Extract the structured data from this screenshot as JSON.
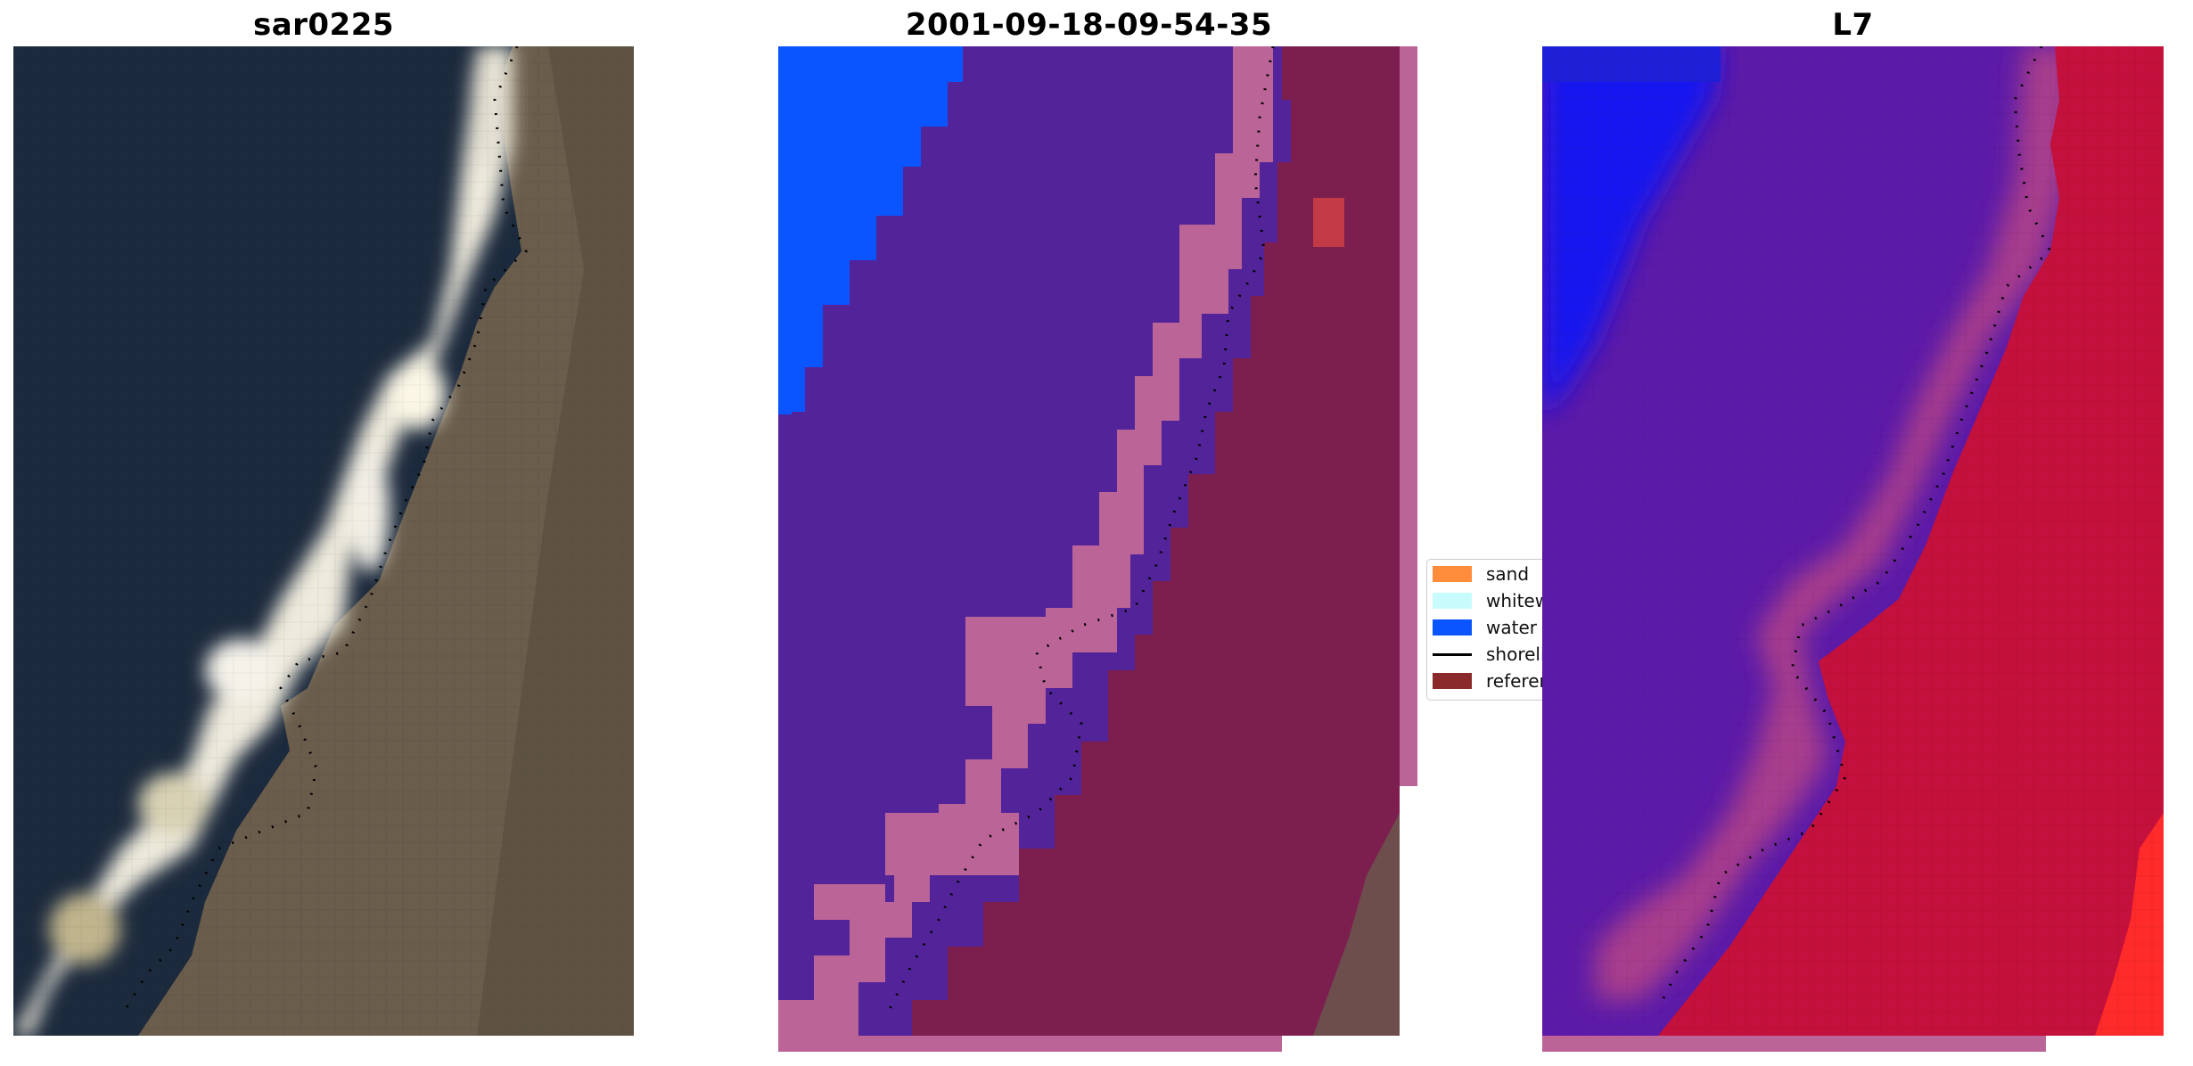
{
  "panels": [
    {
      "title": "sar0225",
      "kind": "rgb"
    },
    {
      "title": "2001-09-18-09-54-35",
      "kind": "classified"
    },
    {
      "title": "L7",
      "kind": "probability"
    }
  ],
  "legend": {
    "items": [
      {
        "label": "sand",
        "color": "#ff8c3a",
        "kind": "swatch"
      },
      {
        "label": "whitewater",
        "color": "#c8fbfb",
        "kind": "swatch"
      },
      {
        "label": "water",
        "color": "#0a55ff",
        "kind": "swatch"
      },
      {
        "label": "shoreline",
        "color": "#000000",
        "kind": "line"
      },
      {
        "label": "reference shoreline buffer",
        "color": "#8b2a2a",
        "kind": "swatch"
      }
    ]
  },
  "colors": {
    "ocean": "#1c2a3d",
    "land": "#6a5d4c",
    "sand_bright": "#f4efd2",
    "water_class": "#0a55ff",
    "other_class": "#53239a",
    "buffer": "#bb6497",
    "land_overlay": "#7c1f4f",
    "prob_water": "#5c1aa8",
    "prob_land": "#c4103c",
    "prob_red": "#ff2a2a"
  }
}
